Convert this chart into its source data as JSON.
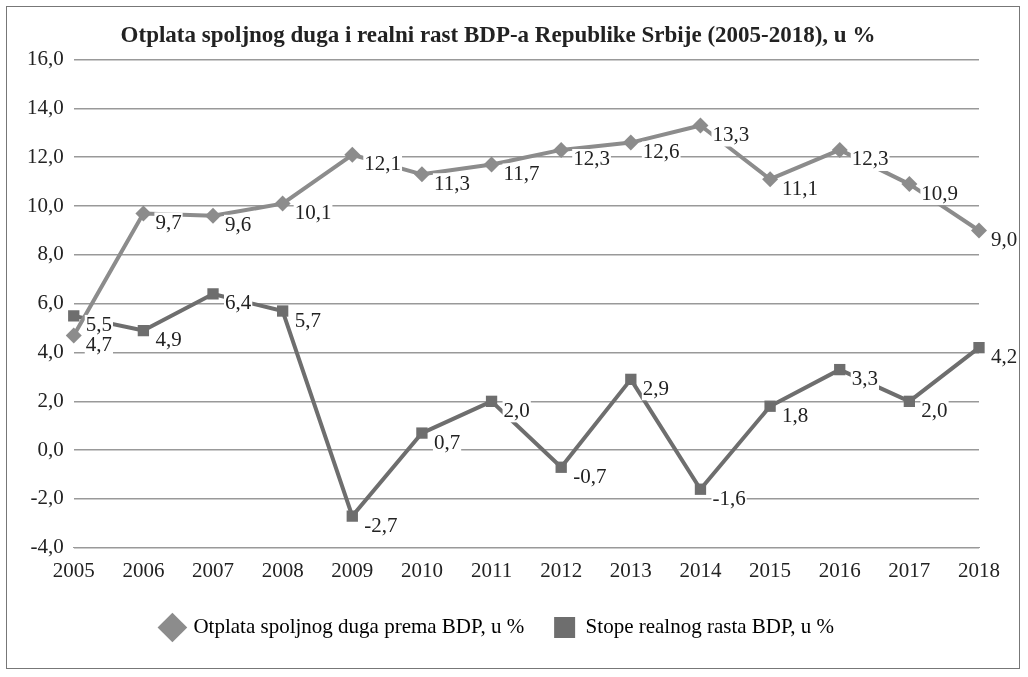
{
  "chart_data": {
    "type": "line",
    "title": "Otplata spoljnog duga i realni rast BDP-a Republike Srbije (2005-2018), u %",
    "categories": [
      "2005",
      "2006",
      "2007",
      "2008",
      "2009",
      "2010",
      "2011",
      "2012",
      "2013",
      "2014",
      "2015",
      "2016",
      "2017",
      "2018"
    ],
    "series": [
      {
        "name": "Otplata spoljnog duga prema BDP, u %",
        "color": "#8c8c8c",
        "marker": "diamond",
        "values": [
          4.7,
          9.7,
          9.6,
          10.1,
          12.1,
          11.3,
          11.7,
          12.3,
          12.6,
          13.3,
          11.1,
          12.3,
          10.9,
          9.0
        ],
        "value_labels": [
          "4,7",
          "9,7",
          "9,6",
          "10,1",
          "12,1",
          "11,3",
          "11,7",
          "12,3",
          "12,6",
          "13,3",
          "11,1",
          "12,3",
          "10,9",
          "9,0"
        ]
      },
      {
        "name": "Stope realnog rasta BDP, u %",
        "color": "#6e6e6e",
        "marker": "square",
        "values": [
          5.5,
          4.9,
          6.4,
          5.7,
          -2.7,
          0.7,
          2.0,
          -0.7,
          2.9,
          -1.6,
          1.8,
          3.3,
          2.0,
          4.2
        ],
        "value_labels": [
          "5,5",
          "4,9",
          "6,4",
          "5,7",
          "-2,7",
          "0,7",
          "2,0",
          "-0,7",
          "2,9",
          "-1,6",
          "1,8",
          "3,3",
          "2,0",
          "4,2"
        ]
      }
    ],
    "ylim": [
      -4,
      16
    ],
    "yticks": [
      {
        "value": -4,
        "label": "-4,0"
      },
      {
        "value": -2,
        "label": "-2,0"
      },
      {
        "value": 0,
        "label": "0,0"
      },
      {
        "value": 2,
        "label": "2,0"
      },
      {
        "value": 4,
        "label": "4,0"
      },
      {
        "value": 6,
        "label": "6,0"
      },
      {
        "value": 8,
        "label": "8,0"
      },
      {
        "value": 10,
        "label": "10,0"
      },
      {
        "value": 12,
        "label": "12,0"
      },
      {
        "value": 14,
        "label": "14,0"
      },
      {
        "value": 16,
        "label": "16,0"
      }
    ],
    "grid": "y",
    "legend": "bottom",
    "line_style": "solid"
  }
}
